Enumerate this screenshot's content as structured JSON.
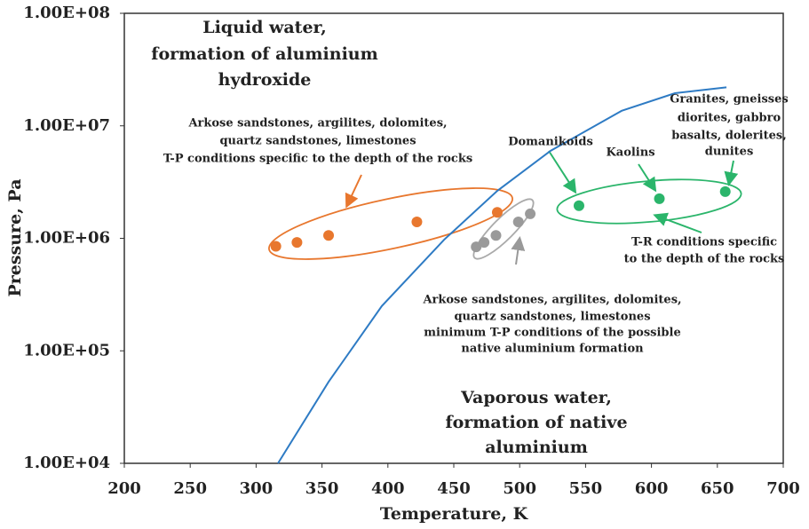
{
  "chart_data": {
    "type": "scatter",
    "xlabel": "Temperature, K",
    "ylabel": "Pressure, Pa",
    "xlim": [
      200,
      700
    ],
    "xticks": [
      200,
      250,
      300,
      350,
      400,
      450,
      500,
      550,
      600,
      650,
      700
    ],
    "ylim": [
      10000,
      100000000
    ],
    "yscale": "log",
    "yticks": [
      {
        "value": 10000,
        "label": "1.00E+04"
      },
      {
        "value": 100000,
        "label": "1.00E+05"
      },
      {
        "value": 1000000,
        "label": "1.00E+06"
      },
      {
        "value": 10000000,
        "label": "1.00E+07"
      },
      {
        "value": 100000000,
        "label": "1.00E+08"
      }
    ],
    "series": [
      {
        "type": "line",
        "color": "#2e7bc4",
        "x": [
          316.6,
          355,
          395.4,
          442.6,
          483,
          523.5,
          577.4,
          617.8,
          656.9
        ],
        "values": [
          10000,
          53000,
          250000,
          970000,
          2640000,
          6000000,
          13600000,
          19500000,
          22000000
        ]
      },
      {
        "type": "scatter",
        "color": "#e8772e",
        "x": [
          315,
          331,
          355,
          422,
          483
        ],
        "values": [
          850000,
          920000,
          1060000,
          1400000,
          1700000
        ]
      },
      {
        "type": "scatter",
        "color": "#9a9a9a",
        "x": [
          467,
          473,
          482,
          499,
          508
        ],
        "values": [
          840000,
          920000,
          1060000,
          1400000,
          1650000
        ]
      },
      {
        "type": "scatter",
        "color": "#2bb56b",
        "x": [
          545,
          606,
          656
        ],
        "values": [
          1950000,
          2250000,
          2600000
        ]
      }
    ],
    "annotations": [
      {
        "lines": [
          "Liquid water,",
          "formation of aluminium",
          "hydroxide"
        ]
      },
      {
        "lines": [
          "Arkose sandstones, argilites, dolomites,",
          "quartz sandstones, limestones",
          "T-P conditions specific to the depth of the rocks"
        ]
      },
      {
        "lines": [
          "Domanikoids"
        ]
      },
      {
        "lines": [
          "Kaolins"
        ]
      },
      {
        "lines": [
          "Granites, gneisses",
          "diorites, gabbro",
          "basalts, dolerites,",
          "dunites"
        ]
      },
      {
        "lines": [
          "T-R conditions specific",
          "to the depth of the rocks"
        ]
      },
      {
        "lines": [
          "Arkose sandstones, argilites, dolomites,",
          "quartz sandstones, limestones",
          "minimum T-P conditions of the possible",
          "native aluminium formation"
        ]
      },
      {
        "lines": [
          "Vaporous water,",
          "formation of native",
          "aluminium"
        ]
      }
    ]
  }
}
